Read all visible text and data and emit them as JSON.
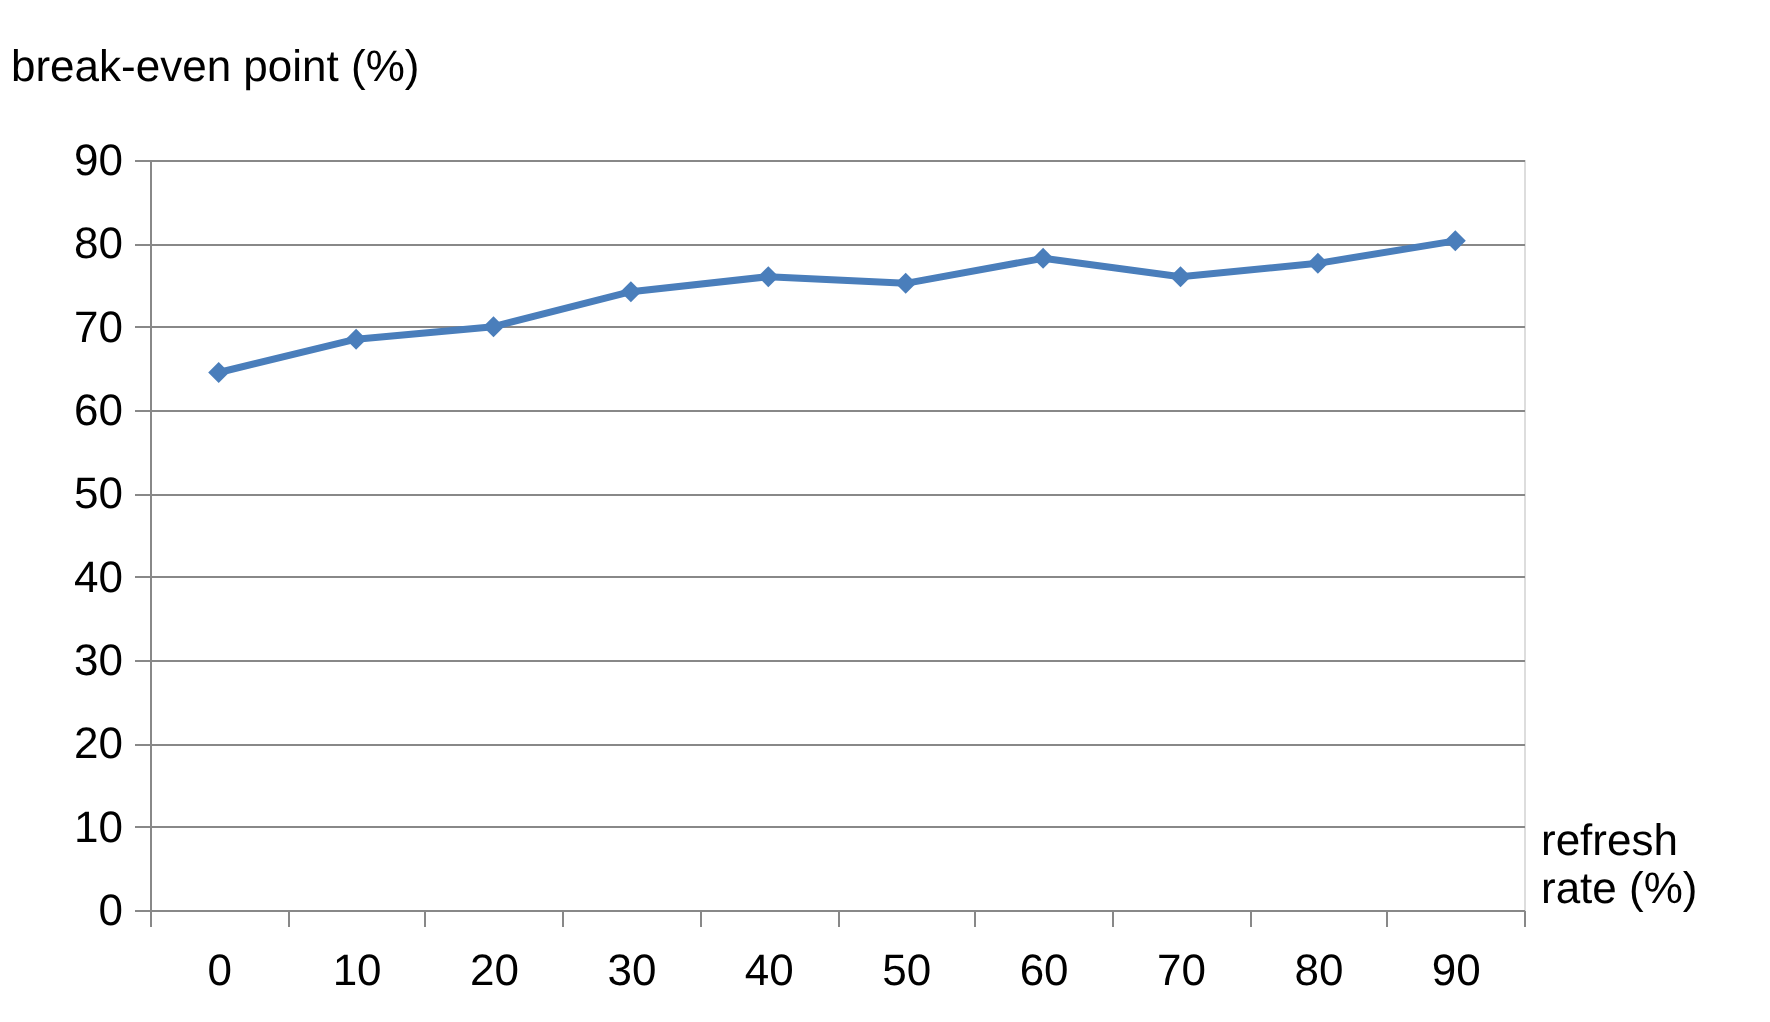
{
  "chart_data": {
    "type": "line",
    "xlabel": "refresh rate (%)",
    "ylabel": "break-even point (%)",
    "categories": [
      "0",
      "10",
      "20",
      "30",
      "40",
      "50",
      "60",
      "70",
      "80",
      "90"
    ],
    "series": [
      {
        "color": "#4a7ebb",
        "values": [
          64.5,
          68.5,
          70,
          74.2,
          76,
          75.2,
          78.2,
          76,
          77.6,
          80.3
        ]
      }
    ],
    "ylim": [
      0,
      90
    ],
    "yticks": [
      0,
      10,
      20,
      30,
      40,
      50,
      60,
      70,
      80,
      90
    ],
    "grid": "y",
    "marker": "diamond",
    "line_style": "solid"
  }
}
